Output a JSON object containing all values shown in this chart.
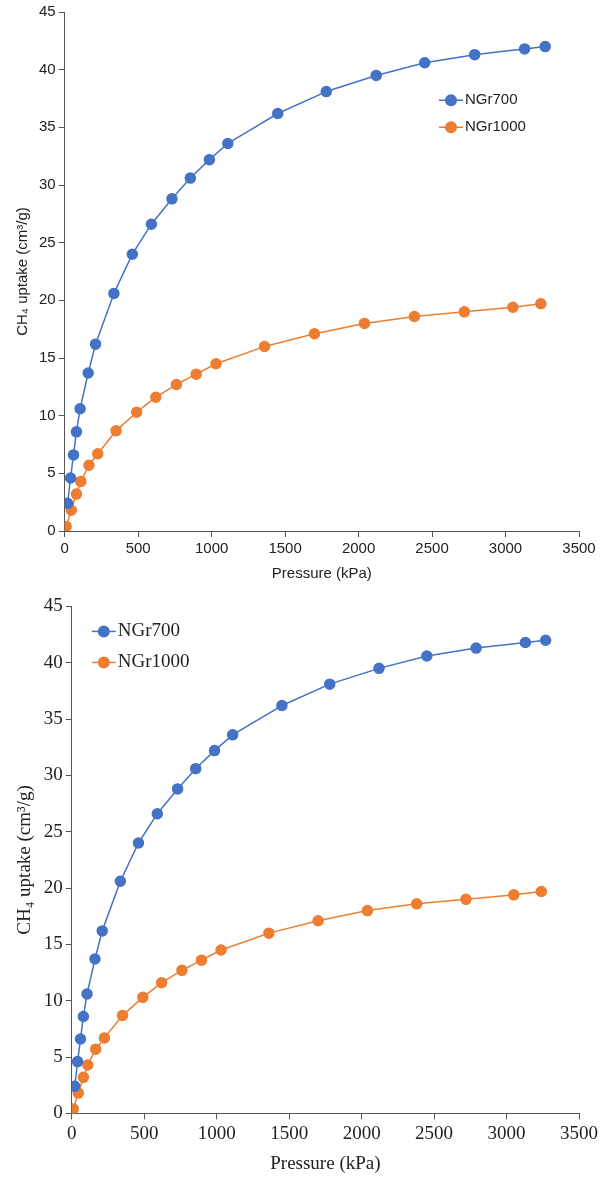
{
  "chart_data": [
    {
      "type": "line",
      "xlabel": "Pressure (kPa)",
      "ylabel": "CH₄ uptake (cm³/g)",
      "xlim": [
        0,
        3500
      ],
      "xticks": [
        0,
        500,
        1000,
        1500,
        2000,
        2500,
        3000,
        3500
      ],
      "ylim": [
        0,
        45
      ],
      "yticks": [
        0,
        5,
        10,
        15,
        20,
        25,
        30,
        35,
        40,
        45
      ],
      "grid": false,
      "legend": "right",
      "marker": "circle",
      "line_style": "solid",
      "series": [
        {
          "name": "NGr700",
          "color": "#4472c4",
          "x": [
            20,
            40,
            60,
            80,
            105,
            160,
            210,
            335,
            460,
            590,
            730,
            855,
            985,
            1110,
            1450,
            1780,
            2120,
            2450,
            2790,
            3130,
            3270
          ],
          "values": [
            2.4,
            4.6,
            6.6,
            8.6,
            10.6,
            13.7,
            16.2,
            20.6,
            24.0,
            26.6,
            28.8,
            30.6,
            32.2,
            33.6,
            36.2,
            38.1,
            39.5,
            40.6,
            41.3,
            41.8,
            42.0
          ]
        },
        {
          "name": "NGr1000",
          "color": "#ed7d31",
          "x": [
            10,
            45,
            80,
            110,
            165,
            225,
            350,
            490,
            620,
            760,
            895,
            1030,
            1360,
            1700,
            2040,
            2380,
            2720,
            3050,
            3240
          ],
          "values": [
            0.4,
            1.8,
            3.2,
            4.3,
            5.7,
            6.7,
            8.7,
            10.3,
            11.6,
            12.7,
            13.6,
            14.5,
            16.0,
            17.1,
            18.0,
            18.6,
            19.0,
            19.4,
            19.7
          ]
        }
      ]
    },
    {
      "type": "line",
      "xlabel": "Pressure (kPa)",
      "ylabel": "CH₄ uptake (cm³/g)",
      "xlim": [
        0,
        3500
      ],
      "xticks": [
        0,
        500,
        1000,
        1500,
        2000,
        2500,
        3000,
        3500
      ],
      "ylim": [
        0,
        45
      ],
      "yticks": [
        0,
        5,
        10,
        15,
        20,
        25,
        30,
        35,
        40,
        45
      ],
      "grid": false,
      "legend": "top left",
      "marker": "circle",
      "line_style": "solid",
      "series": [
        {
          "name": "NGr700",
          "color": "#4472c4",
          "x": [
            20,
            40,
            60,
            80,
            105,
            160,
            210,
            335,
            460,
            590,
            730,
            855,
            985,
            1110,
            1450,
            1780,
            2120,
            2450,
            2790,
            3130,
            3270
          ],
          "values": [
            2.4,
            4.6,
            6.6,
            8.6,
            10.6,
            13.7,
            16.2,
            20.6,
            24.0,
            26.6,
            28.8,
            30.6,
            32.2,
            33.6,
            36.2,
            38.1,
            39.5,
            40.6,
            41.3,
            41.8,
            42.0
          ]
        },
        {
          "name": "NGr1000",
          "color": "#ed7d31",
          "x": [
            10,
            45,
            80,
            110,
            165,
            225,
            350,
            490,
            620,
            760,
            895,
            1030,
            1360,
            1700,
            2040,
            2380,
            2720,
            3050,
            3240
          ],
          "values": [
            0.4,
            1.8,
            3.2,
            4.3,
            5.7,
            6.7,
            8.7,
            10.3,
            11.6,
            12.7,
            13.6,
            14.5,
            16.0,
            17.1,
            18.0,
            18.6,
            19.0,
            19.4,
            19.7
          ]
        }
      ]
    }
  ]
}
